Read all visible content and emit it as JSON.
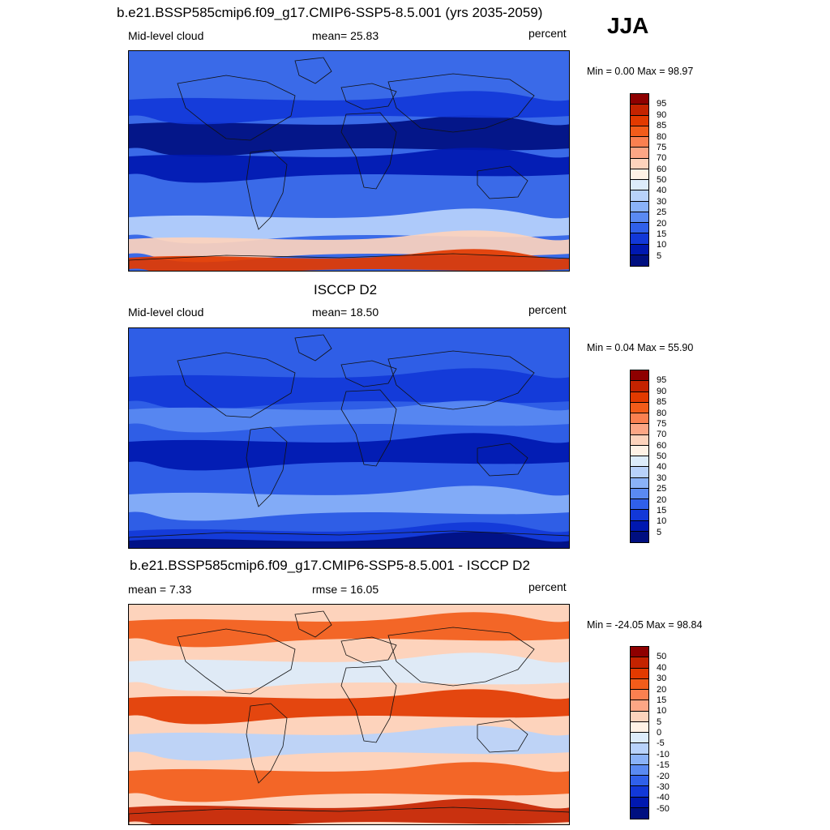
{
  "season": "JJA",
  "scales": {
    "abs": {
      "labels": [
        "95",
        "90",
        "85",
        "80",
        "75",
        "70",
        "60",
        "50",
        "40",
        "30",
        "25",
        "20",
        "15",
        "10",
        "5"
      ],
      "colors": [
        "#8e0000",
        "#c42300",
        "#e23a00",
        "#f25c1a",
        "#fa8050",
        "#fca685",
        "#fdd3bc",
        "#fff2e6",
        "#dcecfb",
        "#b8d2fb",
        "#8ab2f8",
        "#5a8af2",
        "#3060ea",
        "#1238d8",
        "#0018b0",
        "#000f80"
      ]
    },
    "diff": {
      "labels": [
        "50",
        "40",
        "30",
        "20",
        "15",
        "10",
        "5",
        "0",
        "-5",
        "-10",
        "-15",
        "-20",
        "-30",
        "-40",
        "-50"
      ],
      "colors": [
        "#8e0000",
        "#c42300",
        "#e23a00",
        "#f25c1a",
        "#fa8050",
        "#fca685",
        "#fdd3bc",
        "#fff2e6",
        "#dcecfb",
        "#b8d2fb",
        "#8ab2f8",
        "#5a8af2",
        "#3060ea",
        "#1238d8",
        "#0018b0",
        "#000f80"
      ]
    }
  },
  "panels": [
    {
      "title": "b.e21.BSSP585cmip6.f09_g17.CMIP6-SSP5-8.5.001 (yrs 2035-2059)",
      "left_label": "Mid-level cloud",
      "center_label": "mean=  25.83",
      "right_label": "percent",
      "minmax": "Min =    0.00 Max =  98.97",
      "scale": "abs",
      "field": {
        "mean": 25.83,
        "min": 0.0,
        "max": 98.97
      },
      "ocean_color": "#3a6ae8"
    },
    {
      "title": "ISCCP D2",
      "left_label": "Mid-level cloud",
      "center_label": "mean=  18.50",
      "right_label": "percent",
      "minmax": "Min =    0.04 Max =  55.90",
      "scale": "abs",
      "field": {
        "mean": 18.5,
        "min": 0.04,
        "max": 55.9
      },
      "ocean_color": "#2f5ee6"
    },
    {
      "title": "b.e21.BSSP585cmip6.f09_g17.CMIP6-SSP5-8.5.001 - ISCCP D2",
      "left_label": "mean =   7.33",
      "center_label": "rmse =  16.05",
      "right_label": "percent",
      "minmax": "Min = -24.05 Max =  98.84",
      "scale": "diff",
      "field": {
        "mean": 7.33,
        "rmse": 16.05,
        "min": -24.05,
        "max": 98.84
      },
      "ocean_color": "#fdd3bc"
    }
  ]
}
